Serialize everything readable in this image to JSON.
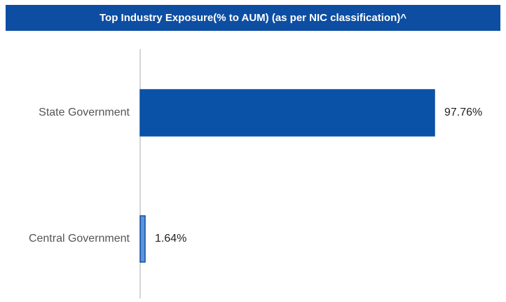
{
  "chart_data": {
    "type": "bar",
    "orientation": "horizontal",
    "title": "Top Industry Exposure(% to AUM) (as per NIC classification)^",
    "categories": [
      "State Government",
      "Central Government"
    ],
    "values": [
      97.76,
      1.64
    ],
    "value_labels": [
      "97.76%",
      "1.64%"
    ],
    "colors": [
      "#0a52a8",
      "#5f93dc"
    ],
    "title_background": "#0d4ea3"
  }
}
